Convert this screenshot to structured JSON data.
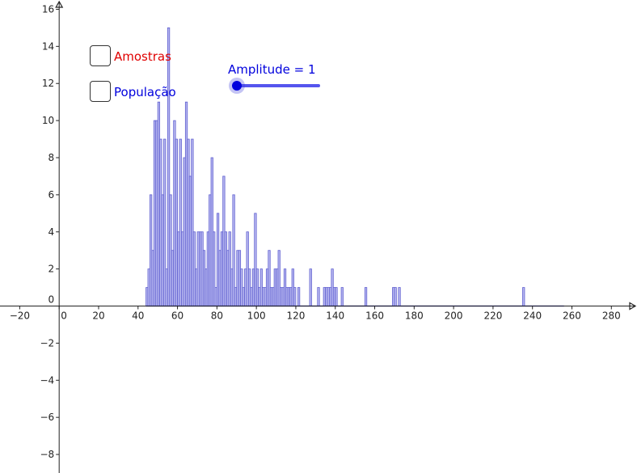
{
  "controls": {
    "amostras_label": "Amostras",
    "amostras_color": "#e00000",
    "populacao_label": "População",
    "populacao_color": "#0000dd",
    "slider_label": "Amplitude = 1",
    "slider_color": "#0000dd",
    "slider_track_color": "#5555ee",
    "slider_value": 1,
    "slider_min": 1,
    "slider_max": 20
  },
  "chart_data": {
    "type": "bar",
    "bar_width": 1,
    "bar_fill": "#b8b8f0",
    "bar_stroke": "#5f5fd0",
    "xlim": [
      -30,
      293
    ],
    "ylim": [
      -9,
      16.5
    ],
    "x_ticks": [
      -20,
      0,
      20,
      40,
      60,
      80,
      100,
      120,
      140,
      160,
      180,
      200,
      220,
      240,
      260,
      280
    ],
    "y_ticks": [
      -8,
      -6,
      -4,
      -2,
      0,
      2,
      4,
      6,
      8,
      10,
      12,
      14,
      16
    ],
    "bins": [
      [
        44,
        1
      ],
      [
        45,
        2
      ],
      [
        46,
        6
      ],
      [
        47,
        3
      ],
      [
        48,
        10
      ],
      [
        49,
        10
      ],
      [
        50,
        11
      ],
      [
        51,
        9
      ],
      [
        52,
        6
      ],
      [
        53,
        9
      ],
      [
        54,
        2
      ],
      [
        55,
        15
      ],
      [
        56,
        6
      ],
      [
        57,
        3
      ],
      [
        58,
        10
      ],
      [
        59,
        9
      ],
      [
        60,
        4
      ],
      [
        61,
        9
      ],
      [
        62,
        4
      ],
      [
        63,
        8
      ],
      [
        64,
        11
      ],
      [
        65,
        9
      ],
      [
        66,
        7
      ],
      [
        67,
        9
      ],
      [
        68,
        4
      ],
      [
        69,
        2
      ],
      [
        70,
        4
      ],
      [
        71,
        4
      ],
      [
        72,
        4
      ],
      [
        73,
        3
      ],
      [
        74,
        2
      ],
      [
        75,
        4
      ],
      [
        76,
        6
      ],
      [
        77,
        8
      ],
      [
        78,
        4
      ],
      [
        79,
        1
      ],
      [
        80,
        5
      ],
      [
        81,
        3
      ],
      [
        82,
        4
      ],
      [
        83,
        7
      ],
      [
        84,
        4
      ],
      [
        85,
        3
      ],
      [
        86,
        4
      ],
      [
        87,
        2
      ],
      [
        88,
        6
      ],
      [
        89,
        1
      ],
      [
        90,
        3
      ],
      [
        91,
        3
      ],
      [
        92,
        2
      ],
      [
        93,
        1
      ],
      [
        94,
        2
      ],
      [
        95,
        4
      ],
      [
        96,
        2
      ],
      [
        97,
        1
      ],
      [
        98,
        2
      ],
      [
        99,
        5
      ],
      [
        100,
        2
      ],
      [
        101,
        1
      ],
      [
        102,
        2
      ],
      [
        103,
        1
      ],
      [
        104,
        1
      ],
      [
        105,
        2
      ],
      [
        106,
        3
      ],
      [
        107,
        1
      ],
      [
        108,
        1
      ],
      [
        109,
        2
      ],
      [
        110,
        2
      ],
      [
        111,
        3
      ],
      [
        112,
        1
      ],
      [
        113,
        1
      ],
      [
        114,
        2
      ],
      [
        115,
        1
      ],
      [
        116,
        1
      ],
      [
        117,
        1
      ],
      [
        118,
        2
      ],
      [
        119,
        1
      ],
      [
        121,
        1
      ],
      [
        127,
        2
      ],
      [
        131,
        1
      ],
      [
        134,
        1
      ],
      [
        135,
        1
      ],
      [
        136,
        1
      ],
      [
        137,
        1
      ],
      [
        138,
        2
      ],
      [
        139,
        1
      ],
      [
        140,
        1
      ],
      [
        143,
        1
      ],
      [
        155,
        1
      ],
      [
        169,
        1
      ],
      [
        170,
        1
      ],
      [
        172,
        1
      ],
      [
        235,
        1
      ]
    ],
    "baseline_end": 256
  }
}
